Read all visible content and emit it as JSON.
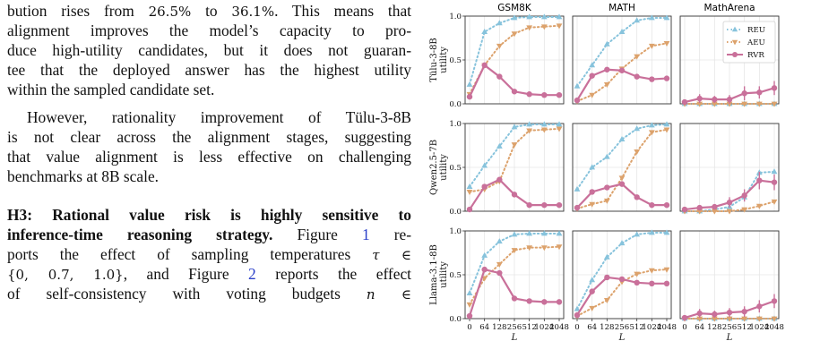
{
  "text": {
    "l1_a": "bution rises from ",
    "l1_m1": "26.5%",
    "l1_b": " to ",
    "l1_m2": "36.1%",
    "l1_c": ". This means that",
    "l2": "alignment improves the model’s capacity to pro-",
    "l3": "duce high-utility candidates, but it does not guaran-",
    "l4": "tee that the deployed answer has the highest utility",
    "l5": "within the sampled candidate set.",
    "l6": "However, rationality improvement of Tülu-3-8B",
    "l7": "is not clear across the alignment stages, suggesting",
    "l8": "that value alignment is less effective on challenging",
    "l9": "benchmarks at 8B scale.",
    "l10_bold": "H3: Rational value risk is highly sensitive to",
    "l11_bold": "inference-time reasoning strategy.",
    "l11_rest": " Figure ",
    "l11_ref": "1",
    "l11_end": " re-",
    "l12_a": "ports the effect of sampling temperatures ",
    "l12_m": "τ ∈",
    "l13_m": "{0, 0.7, 1.0}",
    "l13_a": ", and Figure ",
    "l13_ref": "2",
    "l13_b": " reports the effect",
    "l14_a": "of self-consistency with voting budgets ",
    "l14_m": "n ∈"
  },
  "chart_data": {
    "type": "line",
    "columns": [
      "GSM8K",
      "MATH",
      "MathArena"
    ],
    "rows": [
      "Tülu-3-8B",
      "Qwen2.5-7B",
      "Llama-3.1-8B"
    ],
    "ylabel_suffix": "utility",
    "xlabel": "L",
    "x": [
      0,
      64,
      128,
      256,
      512,
      1024,
      2048
    ],
    "x_tick_labels": [
      "0",
      "64",
      "128",
      "256",
      "512",
      "1024",
      "2048"
    ],
    "ylim": [
      0,
      1
    ],
    "y_ticks": [
      0.0,
      0.5,
      1.0
    ],
    "y_tick_labels": [
      "0.0",
      "0.5",
      "1.0"
    ],
    "grid": true,
    "legend": {
      "position": "top-right of MathArena panel (first row)",
      "entries": [
        "REU",
        "AEU",
        "RVR"
      ]
    },
    "series_style": {
      "REU": {
        "color": "#87c3dc",
        "marker": "triangle-up",
        "dash": "1.5,3"
      },
      "AEU": {
        "color": "#dca26c",
        "marker": "triangle-down",
        "dash": "1.5,3"
      },
      "RVR": {
        "color": "#c9709a",
        "marker": "circle",
        "dash": ""
      }
    },
    "panels": [
      {
        "row": 0,
        "col": 0,
        "series": [
          {
            "name": "REU",
            "values": [
              0.22,
              0.82,
              0.92,
              0.98,
              0.99,
              0.99,
              0.99
            ]
          },
          {
            "name": "AEU",
            "values": [
              0.11,
              0.44,
              0.66,
              0.8,
              0.87,
              0.88,
              0.89
            ]
          },
          {
            "name": "RVR",
            "values": [
              0.08,
              0.44,
              0.31,
              0.14,
              0.11,
              0.1,
              0.1
            ],
            "err": [
              0.01,
              0.03,
              0.02,
              0.01,
              0.01,
              0.01,
              0.01
            ]
          }
        ]
      },
      {
        "row": 0,
        "col": 1,
        "series": [
          {
            "name": "REU",
            "values": [
              0.2,
              0.44,
              0.68,
              0.82,
              0.95,
              0.98,
              0.98
            ]
          },
          {
            "name": "AEU",
            "values": [
              0.03,
              0.1,
              0.22,
              0.4,
              0.54,
              0.66,
              0.69
            ]
          },
          {
            "name": "RVR",
            "values": [
              0.04,
              0.32,
              0.39,
              0.38,
              0.31,
              0.28,
              0.29
            ],
            "err": [
              0.01,
              0.03,
              0.03,
              0.03,
              0.02,
              0.02,
              0.02
            ]
          }
        ]
      },
      {
        "row": 0,
        "col": 2,
        "series": [
          {
            "name": "REU",
            "values": [
              0.0,
              0.0,
              0.0,
              0.0,
              0.0,
              0.0,
              0.0
            ]
          },
          {
            "name": "AEU",
            "values": [
              0.0,
              0.0,
              0.0,
              0.0,
              0.0,
              0.0,
              0.0
            ]
          },
          {
            "name": "RVR",
            "values": [
              0.02,
              0.06,
              0.05,
              0.05,
              0.12,
              0.13,
              0.18
            ],
            "err": [
              0.02,
              0.05,
              0.04,
              0.05,
              0.08,
              0.07,
              0.08
            ]
          }
        ]
      },
      {
        "row": 1,
        "col": 0,
        "series": [
          {
            "name": "REU",
            "values": [
              0.28,
              0.52,
              0.74,
              0.96,
              0.99,
              0.99,
              0.99
            ]
          },
          {
            "name": "AEU",
            "values": [
              0.22,
              0.25,
              0.34,
              0.76,
              0.92,
              0.93,
              0.94
            ]
          },
          {
            "name": "RVR",
            "values": [
              0.02,
              0.28,
              0.36,
              0.19,
              0.07,
              0.07,
              0.07
            ],
            "err": [
              0.01,
              0.02,
              0.02,
              0.02,
              0.01,
              0.01,
              0.01
            ]
          }
        ]
      },
      {
        "row": 1,
        "col": 1,
        "series": [
          {
            "name": "REU",
            "values": [
              0.25,
              0.5,
              0.62,
              0.82,
              0.94,
              0.98,
              0.99
            ]
          },
          {
            "name": "AEU",
            "values": [
              0.03,
              0.08,
              0.12,
              0.38,
              0.68,
              0.9,
              0.93
            ]
          },
          {
            "name": "RVR",
            "values": [
              0.04,
              0.22,
              0.27,
              0.31,
              0.16,
              0.07,
              0.07
            ],
            "err": [
              0.01,
              0.02,
              0.02,
              0.03,
              0.02,
              0.01,
              0.01
            ]
          }
        ]
      },
      {
        "row": 1,
        "col": 2,
        "series": [
          {
            "name": "REU",
            "values": [
              0.0,
              0.0,
              0.02,
              0.05,
              0.16,
              0.44,
              0.45
            ]
          },
          {
            "name": "AEU",
            "values": [
              0.0,
              0.0,
              0.0,
              0.0,
              0.02,
              0.06,
              0.11
            ]
          },
          {
            "name": "RVR",
            "values": [
              0.02,
              0.04,
              0.05,
              0.1,
              0.18,
              0.35,
              0.33
            ],
            "err": [
              0.02,
              0.03,
              0.03,
              0.06,
              0.07,
              0.1,
              0.09
            ]
          }
        ]
      },
      {
        "row": 2,
        "col": 0,
        "series": [
          {
            "name": "REU",
            "values": [
              0.29,
              0.72,
              0.88,
              0.96,
              0.97,
              0.97,
              0.97
            ]
          },
          {
            "name": "AEU",
            "values": [
              0.16,
              0.46,
              0.62,
              0.78,
              0.81,
              0.81,
              0.82
            ]
          },
          {
            "name": "RVR",
            "values": [
              0.03,
              0.56,
              0.52,
              0.23,
              0.2,
              0.19,
              0.19
            ],
            "err": [
              0.01,
              0.03,
              0.03,
              0.02,
              0.01,
              0.01,
              0.01
            ]
          }
        ]
      },
      {
        "row": 2,
        "col": 1,
        "series": [
          {
            "name": "REU",
            "values": [
              0.11,
              0.44,
              0.7,
              0.86,
              0.96,
              0.98,
              0.98
            ]
          },
          {
            "name": "AEU",
            "values": [
              0.03,
              0.12,
              0.21,
              0.42,
              0.51,
              0.55,
              0.56
            ]
          },
          {
            "name": "RVR",
            "values": [
              0.04,
              0.31,
              0.47,
              0.45,
              0.41,
              0.4,
              0.4
            ],
            "err": [
              0.01,
              0.03,
              0.03,
              0.02,
              0.02,
              0.02,
              0.02
            ]
          }
        ]
      },
      {
        "row": 2,
        "col": 2,
        "series": [
          {
            "name": "REU",
            "values": [
              0.0,
              0.0,
              0.0,
              0.0,
              0.0,
              0.0,
              0.0
            ]
          },
          {
            "name": "AEU",
            "values": [
              0.0,
              0.0,
              0.0,
              0.0,
              0.0,
              0.0,
              0.0
            ]
          },
          {
            "name": "RVR",
            "values": [
              0.01,
              0.06,
              0.05,
              0.07,
              0.08,
              0.14,
              0.2
            ],
            "err": [
              0.02,
              0.05,
              0.04,
              0.05,
              0.06,
              0.07,
              0.08
            ]
          }
        ]
      }
    ]
  }
}
